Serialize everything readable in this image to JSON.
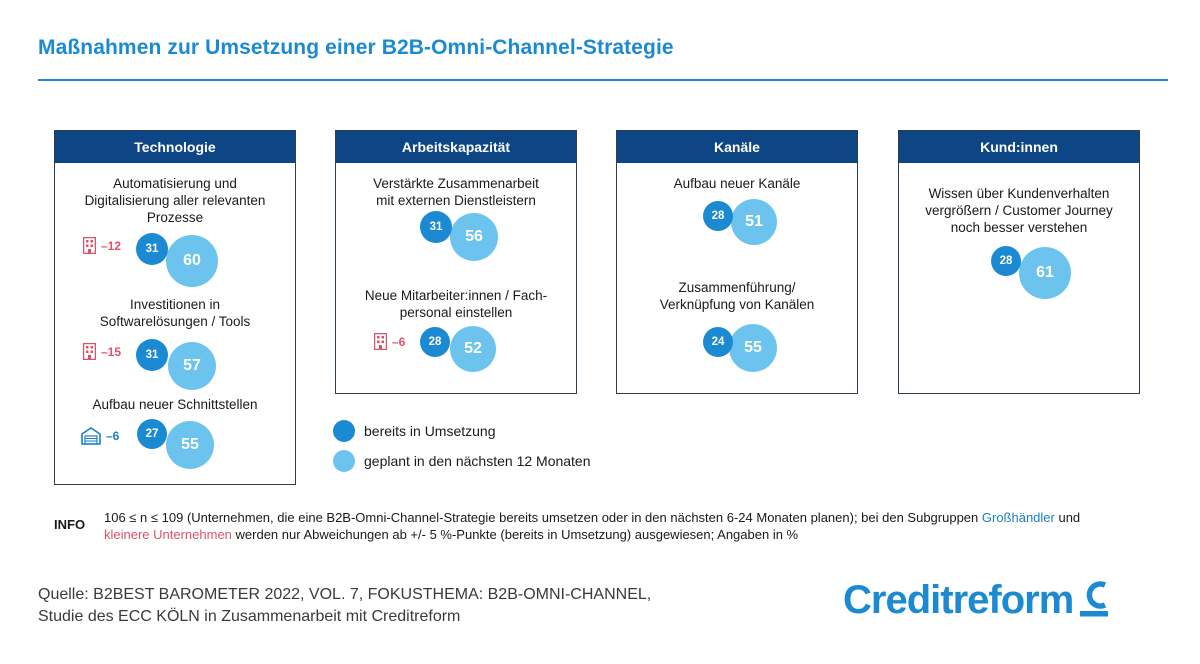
{
  "title": "Maßnahmen zur Umsetzung einer B2B-Omni-Channel-Strategie",
  "colors": {
    "accent": "#1b8ad3",
    "header": "#0d4585",
    "already": "#1b8ad3",
    "planned": "#6cc4ee",
    "wholesaler": "#1b7fc4",
    "smaller_company": "#e05169"
  },
  "chart_data": {
    "type": "bubble-pairs",
    "title": "Maßnahmen zur Umsetzung einer B2B-Omni-Channel-Strategie",
    "unit": "%",
    "series_names": [
      "bereits in Umsetzung",
      "geplant in den nächsten 12 Monaten"
    ],
    "categories": [
      {
        "name": "Technologie",
        "items": [
          {
            "label": "Automatisierung und Digitalisierung aller relevanten Prozesse",
            "already": 31,
            "planned": 60,
            "deviation": {
              "group": "kleinere Unternehmen",
              "value": "–12",
              "icon": "building-icon"
            }
          },
          {
            "label": "Investitionen in Softwarelösungen / Tools",
            "already": 31,
            "planned": 57,
            "deviation": {
              "group": "kleinere Unternehmen",
              "value": "–15",
              "icon": "building-icon"
            }
          },
          {
            "label": "Aufbau neuer Schnittstellen",
            "already": 27,
            "planned": 55,
            "deviation": {
              "group": "Großhändler",
              "value": "–6",
              "icon": "warehouse-icon"
            }
          }
        ]
      },
      {
        "name": "Arbeitskapazität",
        "items": [
          {
            "label": "Verstärkte Zusammenarbeit mit externen Dienstleistern",
            "already": 31,
            "planned": 56
          },
          {
            "label": "Neue Mitarbeiter:innen / Fach-personal einstellen",
            "already": 28,
            "planned": 52,
            "deviation": {
              "group": "kleinere Unternehmen",
              "value": "–6",
              "icon": "building-icon"
            }
          }
        ]
      },
      {
        "name": "Kanäle",
        "items": [
          {
            "label": "Aufbau neuer Kanäle",
            "already": 28,
            "planned": 51
          },
          {
            "label": "Zusammenführung/ Verknüpfung von Kanälen",
            "already": 24,
            "planned": 55
          }
        ]
      },
      {
        "name": "Kund:innen",
        "items": [
          {
            "label": "Wissen über Kundenverhalten vergrößern / Customer Journey noch besser verstehen",
            "already": 28,
            "planned": 61
          }
        ]
      }
    ]
  },
  "panels": [
    {
      "header": "Technologie",
      "items": [
        {
          "label_lines": [
            "Automatisierung und",
            "Digitalisierung aller relevanten",
            "Prozesse"
          ],
          "already": "31",
          "planned": "60",
          "delta": "–12"
        },
        {
          "label_lines": [
            "Investitionen in",
            "Softwarelösungen / Tools"
          ],
          "already": "31",
          "planned": "57",
          "delta": "–15"
        },
        {
          "label_lines": [
            "Aufbau neuer Schnittstellen"
          ],
          "already": "27",
          "planned": "55",
          "delta": "–6"
        }
      ]
    },
    {
      "header": "Arbeitskapazität",
      "items": [
        {
          "label_lines": [
            "Verstärkte Zusammenarbeit",
            "mit externen Dienstleistern"
          ],
          "already": "31",
          "planned": "56"
        },
        {
          "label_lines": [
            "Neue Mitarbeiter:innen / Fach-",
            "personal einstellen"
          ],
          "already": "28",
          "planned": "52",
          "delta": "–6"
        }
      ]
    },
    {
      "header": "Kanäle",
      "items": [
        {
          "label_lines": [
            "Aufbau neuer Kanäle"
          ],
          "already": "28",
          "planned": "51"
        },
        {
          "label_lines": [
            "Zusammenführung/",
            "Verknüpfung von Kanälen"
          ],
          "already": "24",
          "planned": "55"
        }
      ]
    },
    {
      "header": "Kund:innen",
      "items": [
        {
          "label_lines": [
            "Wissen über Kundenverhalten",
            "vergrößern / Customer Journey",
            "noch besser verstehen"
          ],
          "already": "28",
          "planned": "61"
        }
      ]
    }
  ],
  "legend": {
    "already": "bereits in Umsetzung",
    "planned": "geplant in den nächsten 12 Monaten"
  },
  "info": {
    "tag": "INFO",
    "text_1": "106 ≤ n ≤ 109 (Unternehmen, die eine B2B-Omni-Channel-Strategie bereits umsetzen oder in den nächsten 6-24 Monaten planen); bei den Subgruppen ",
    "wholesaler": "Großhändler",
    "text_2": " und ",
    "smaller": "kleinere Unternehmen",
    "text_3": " werden nur Abweichungen ab +/- 5 %-Punkte (bereits in Umsetzung) ausgewiesen; Angaben in %"
  },
  "source": {
    "line1": "Quelle: B2BEST BAROMETER 2022, VOL. 7, FOKUSTHEMA: B2B-OMNI-CHANNEL,",
    "line2": "Studie des ECC KÖLN in Zusammenarbeit mit Creditreform"
  },
  "logo": {
    "text": "Creditreform"
  }
}
